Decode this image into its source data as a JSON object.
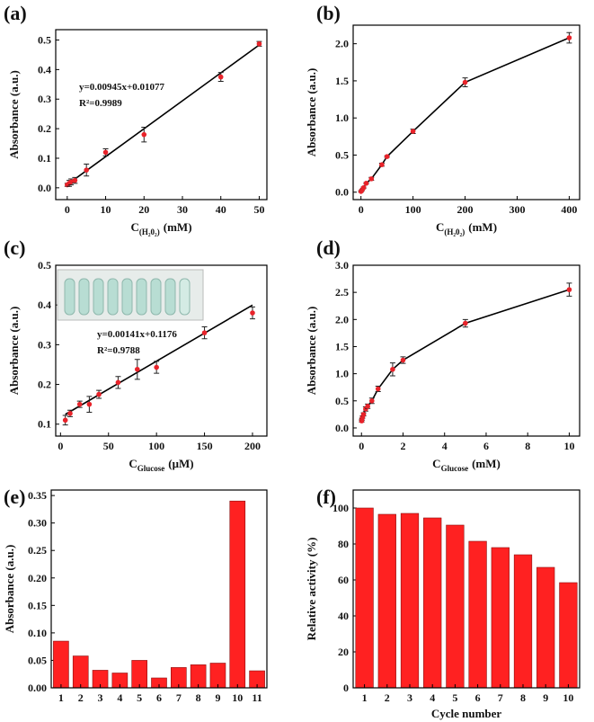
{
  "chart_data": [
    {
      "type": "scatter",
      "panel_label": "(a)",
      "ylabel": "Absorbance (a.u.)",
      "xlabel": "C",
      "xlabel_sub": "(H₂0₂)",
      "xlabel_unit": "(mM)",
      "annotations": [
        "y=0.00945x+0.01077",
        "R²=0.9989"
      ],
      "x": [
        0,
        0.5,
        1,
        2,
        5,
        10,
        20,
        40,
        50
      ],
      "values": [
        0.01,
        0.015,
        0.02,
        0.025,
        0.06,
        0.12,
        0.18,
        0.375,
        0.487
      ],
      "errors": [
        0.005,
        0.01,
        0.01,
        0.01,
        0.02,
        0.012,
        0.025,
        0.015,
        0.008
      ],
      "color": "#e8232a",
      "fit_x": [
        0,
        50
      ],
      "fit_y": [
        0.0108,
        0.4833
      ],
      "xlim": [
        -3,
        52
      ],
      "ylim": [
        -0.04,
        0.535
      ],
      "xticks": [
        0,
        10,
        20,
        30,
        40,
        50
      ],
      "yticks": [
        {
          "value": 0,
          "label": "0.0"
        },
        0.1,
        0.2,
        0.3,
        0.4,
        0.5
      ]
    },
    {
      "type": "line",
      "panel_label": "(b)",
      "ylabel": "Absorbance (a.u.)",
      "xlabel": "C",
      "xlabel_sub": "(H₂0₂)",
      "xlabel_unit": "(mM)",
      "x": [
        0,
        2,
        5,
        10,
        20,
        40,
        50,
        100,
        200,
        400
      ],
      "values": [
        0.01,
        0.03,
        0.06,
        0.12,
        0.18,
        0.37,
        0.48,
        0.82,
        1.48,
        2.08
      ],
      "errors": [
        0.01,
        0.01,
        0.01,
        0.01,
        0.02,
        0.02,
        0.01,
        0.03,
        0.06,
        0.07
      ],
      "color": "#e8232a",
      "xlim": [
        -15,
        420
      ],
      "ylim": [
        -0.1,
        2.25
      ],
      "xticks": [
        0,
        100,
        200,
        300,
        400
      ],
      "yticks": [
        {
          "value": 0,
          "label": "0.0"
        },
        0.5,
        {
          "value": 1,
          "label": "1.0"
        },
        1.5,
        {
          "value": 2,
          "label": "2.0"
        }
      ]
    },
    {
      "type": "scatter",
      "panel_label": "(c)",
      "ylabel": "Absorbance (a.u.)",
      "xlabel": "C",
      "xlabel_sub": "Glucose",
      "xlabel_unit": "(μM)",
      "annotations": [
        "y=0.00141x+0.1176",
        "R²=0.9788"
      ],
      "x": [
        5,
        10,
        20,
        30,
        40,
        60,
        80,
        100,
        150,
        200
      ],
      "values": [
        0.11,
        0.127,
        0.15,
        0.15,
        0.175,
        0.205,
        0.238,
        0.243,
        0.33,
        0.38
      ],
      "errors": [
        0.012,
        0.008,
        0.008,
        0.02,
        0.01,
        0.015,
        0.025,
        0.015,
        0.015,
        0.015
      ],
      "color": "#e8232a",
      "fit_x": [
        5,
        200
      ],
      "fit_y": [
        0.1246,
        0.3996
      ],
      "xlim": [
        -5,
        215
      ],
      "ylim": [
        0.07,
        0.5
      ],
      "xticks": [
        0,
        50,
        100,
        150,
        200
      ],
      "yticks": [
        0.1,
        0.2,
        0.3,
        0.4,
        0.5
      ]
    },
    {
      "type": "line",
      "panel_label": "(d)",
      "ylabel": "Absorbance (a.u.)",
      "xlabel": "C",
      "xlabel_sub": "Glucose",
      "xlabel_unit": "(mM)",
      "x": [
        0.01,
        0.02,
        0.05,
        0.1,
        0.2,
        0.3,
        0.5,
        0.8,
        1.5,
        2,
        5,
        10
      ],
      "values": [
        0.13,
        0.16,
        0.2,
        0.25,
        0.35,
        0.4,
        0.5,
        0.72,
        1.08,
        1.25,
        1.93,
        2.55
      ],
      "errors": [
        0.02,
        0.02,
        0.02,
        0.03,
        0.04,
        0.04,
        0.05,
        0.05,
        0.12,
        0.06,
        0.07,
        0.12
      ],
      "color": "#e8232a",
      "xlim": [
        -0.4,
        10.5
      ],
      "ylim": [
        -0.15,
        3.0
      ],
      "xticks": [
        0,
        2,
        4,
        6,
        8,
        10
      ],
      "yticks": [
        {
          "value": 0,
          "label": "0.0"
        },
        0.5,
        {
          "value": 1,
          "label": "1.0"
        },
        1.5,
        {
          "value": 2,
          "label": "2.0"
        },
        2.5,
        {
          "value": 3,
          "label": "3.0"
        }
      ]
    },
    {
      "type": "bar",
      "panel_label": "(e)",
      "ylabel": "Absorbance (a.u.)",
      "categories": [
        "1",
        "2",
        "3",
        "4",
        "5",
        "6",
        "7",
        "8",
        "9",
        "10",
        "11"
      ],
      "values": [
        0.085,
        0.058,
        0.032,
        0.027,
        0.05,
        0.018,
        0.037,
        0.042,
        0.045,
        0.34,
        0.031
      ],
      "color": "#ff2121",
      "ylim": [
        0,
        0.36
      ],
      "yticks": [
        {
          "value": 0,
          "label": "0.00"
        },
        0.05,
        {
          "value": 0.1,
          "label": "0.10"
        },
        0.15,
        {
          "value": 0.2,
          "label": "0.20"
        },
        0.25,
        {
          "value": 0.3,
          "label": "0.30"
        },
        0.35
      ]
    },
    {
      "type": "bar",
      "panel_label": "(f)",
      "ylabel": "Relative activity (%)",
      "xlabel": "Cycle number",
      "categories": [
        "1",
        "2",
        "3",
        "4",
        "5",
        "6",
        "7",
        "8",
        "9",
        "10"
      ],
      "values": [
        100,
        96.5,
        97,
        94.5,
        90.5,
        81.5,
        78,
        74,
        67,
        58.5
      ],
      "color": "#ff2121",
      "ylim": [
        0,
        110
      ],
      "yticks": [
        0,
        20,
        40,
        60,
        80,
        100
      ]
    }
  ]
}
